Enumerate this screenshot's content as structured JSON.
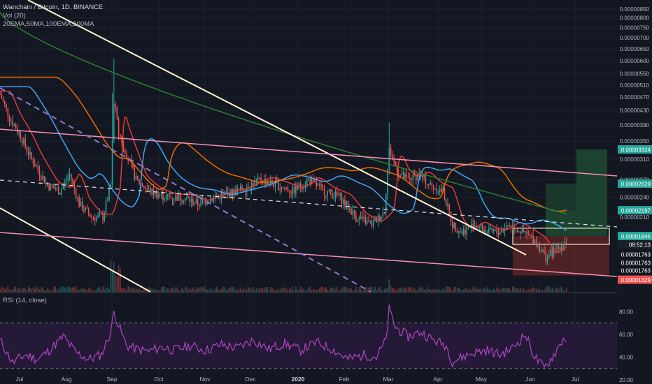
{
  "header": {
    "symbol": "Wanchain / Bitcoin, 1D, BINANCE",
    "volume": "Vol (20)",
    "emas": "20EMA,50MA,100EMA,200MA",
    "rsi": "RSI (14, close)"
  },
  "colors": {
    "background": "#131722",
    "grid": "#1e222d",
    "candle_up": "#26a69a",
    "candle_down": "#ef5350",
    "ema20": "#e53935",
    "ma50": "#42a5f5",
    "ema100": "#ef6c00",
    "ma200": "#2e7d32",
    "white_lines": "#fff5d0",
    "pink_lines": "#f48fb1",
    "dashed_purple": "#9575cd",
    "rsi_line": "#ab47bc",
    "rsi_band": "#2a1a3e"
  },
  "chart_data": [
    {
      "type": "candlestick",
      "ylim": [
        1.29e-06,
        8.9e-06
      ],
      "y_scale": "log",
      "y_ticks": [
        "0.00000850",
        "0.00000800",
        "0.00000750",
        "0.00000700",
        "0.00000650",
        "0.00000600",
        "0.00000550",
        "0.00000510",
        "0.00000470",
        "0.00000430",
        "0.00000390",
        "0.00000350",
        "0.00000310",
        "0.00000270",
        "0.00000240",
        "0.00000210"
      ],
      "x_ticks": [
        "Jul",
        "Aug",
        "Sep",
        "Oct",
        "Nov",
        "Dec",
        "2020",
        "Feb",
        "Mar",
        "Apr",
        "May",
        "Jun",
        "Jul"
      ],
      "price_tags": [
        {
          "label": "0.00003324",
          "value": 3.31e-06,
          "color": "#26a69a"
        },
        {
          "label": "0.00002629",
          "value": 2.63e-06,
          "color": "#26a69a"
        },
        {
          "label": "0.00002197",
          "value": 2.2e-06,
          "color": "#26a69a"
        },
        {
          "label": "0.00001845",
          "value": 1.85e-06,
          "color": "#26a69a"
        },
        {
          "label": "08:52:13",
          "value": 1.75e-06,
          "color": "#1a1e29"
        },
        {
          "label": "0.00001763",
          "value": 1.64e-06,
          "color": "#131722"
        },
        {
          "label": "0.00001763",
          "value": 1.55e-06,
          "color": "#131722"
        },
        {
          "label": "0.00001763",
          "value": 1.47e-06,
          "color": "#131722"
        },
        {
          "label": "0.00001329",
          "value": 1.38e-06,
          "color": "#ef5350"
        }
      ],
      "closes": [
        {
          "d": 0,
          "v": 4.8e-06
        },
        {
          "d": 6,
          "v": 4.1e-06
        },
        {
          "d": 12,
          "v": 3.7e-06
        },
        {
          "d": 20,
          "v": 3.1e-06
        },
        {
          "d": 30,
          "v": 2.6e-06
        },
        {
          "d": 38,
          "v": 2.5e-06
        },
        {
          "d": 44,
          "v": 2.8e-06
        },
        {
          "d": 50,
          "v": 2.3e-06
        },
        {
          "d": 58,
          "v": 2.1e-06
        },
        {
          "d": 65,
          "v": 2.1e-06
        },
        {
          "d": 70,
          "v": 2.6e-06
        },
        {
          "d": 72,
          "v": 4.6e-06
        },
        {
          "d": 75,
          "v": 3.7e-06
        },
        {
          "d": 80,
          "v": 3.2e-06
        },
        {
          "d": 86,
          "v": 2.7e-06
        },
        {
          "d": 95,
          "v": 2.5e-06
        },
        {
          "d": 105,
          "v": 2.4e-06
        },
        {
          "d": 115,
          "v": 2.4e-06
        },
        {
          "d": 125,
          "v": 2.3e-06
        },
        {
          "d": 135,
          "v": 2.4e-06
        },
        {
          "d": 150,
          "v": 2.5e-06
        },
        {
          "d": 165,
          "v": 2.7e-06
        },
        {
          "d": 175,
          "v": 2.6e-06
        },
        {
          "d": 185,
          "v": 2.5e-06
        },
        {
          "d": 195,
          "v": 2.7e-06
        },
        {
          "d": 205,
          "v": 2.5e-06
        },
        {
          "d": 215,
          "v": 2.4e-06
        },
        {
          "d": 225,
          "v": 2.1e-06
        },
        {
          "d": 235,
          "v": 2e-06
        },
        {
          "d": 240,
          "v": 2.1e-06
        },
        {
          "d": 243,
          "v": 2.2e-06
        },
        {
          "d": 246,
          "v": 3.3e-06
        },
        {
          "d": 252,
          "v": 2.8e-06
        },
        {
          "d": 258,
          "v": 2.7e-06
        },
        {
          "d": 265,
          "v": 2.8e-06
        },
        {
          "d": 272,
          "v": 2.6e-06
        },
        {
          "d": 280,
          "v": 2.5e-06
        },
        {
          "d": 286,
          "v": 2e-06
        },
        {
          "d": 292,
          "v": 1.9e-06
        },
        {
          "d": 300,
          "v": 2e-06
        },
        {
          "d": 308,
          "v": 1.9e-06
        },
        {
          "d": 315,
          "v": 1.9e-06
        },
        {
          "d": 322,
          "v": 2e-06
        },
        {
          "d": 330,
          "v": 1.9e-06
        },
        {
          "d": 338,
          "v": 1.8e-06
        },
        {
          "d": 345,
          "v": 1.6e-06
        },
        {
          "d": 352,
          "v": 1.7e-06
        },
        {
          "d": 358,
          "v": 1.8e-06
        }
      ],
      "rsi_ylim": [
        20,
        90
      ],
      "rsi_ticks": [
        "80.00",
        "60.00",
        "40.00",
        "20.00"
      ],
      "rsi_band": [
        30,
        70
      ],
      "rsi": [
        {
          "d": 0,
          "v": 55
        },
        {
          "d": 8,
          "v": 35
        },
        {
          "d": 16,
          "v": 42
        },
        {
          "d": 24,
          "v": 38
        },
        {
          "d": 32,
          "v": 47
        },
        {
          "d": 40,
          "v": 58
        },
        {
          "d": 48,
          "v": 44
        },
        {
          "d": 56,
          "v": 38
        },
        {
          "d": 64,
          "v": 42
        },
        {
          "d": 70,
          "v": 62
        },
        {
          "d": 72,
          "v": 80
        },
        {
          "d": 76,
          "v": 64
        },
        {
          "d": 80,
          "v": 50
        },
        {
          "d": 86,
          "v": 47
        },
        {
          "d": 94,
          "v": 45
        },
        {
          "d": 102,
          "v": 49
        },
        {
          "d": 110,
          "v": 46
        },
        {
          "d": 120,
          "v": 50
        },
        {
          "d": 130,
          "v": 46
        },
        {
          "d": 140,
          "v": 51
        },
        {
          "d": 150,
          "v": 48
        },
        {
          "d": 160,
          "v": 55
        },
        {
          "d": 170,
          "v": 47
        },
        {
          "d": 180,
          "v": 52
        },
        {
          "d": 190,
          "v": 46
        },
        {
          "d": 200,
          "v": 53
        },
        {
          "d": 210,
          "v": 47
        },
        {
          "d": 220,
          "v": 38
        },
        {
          "d": 230,
          "v": 42
        },
        {
          "d": 238,
          "v": 40
        },
        {
          "d": 244,
          "v": 55
        },
        {
          "d": 246,
          "v": 82
        },
        {
          "d": 250,
          "v": 66
        },
        {
          "d": 258,
          "v": 58
        },
        {
          "d": 266,
          "v": 62
        },
        {
          "d": 274,
          "v": 55
        },
        {
          "d": 282,
          "v": 50
        },
        {
          "d": 286,
          "v": 36
        },
        {
          "d": 292,
          "v": 40
        },
        {
          "d": 300,
          "v": 44
        },
        {
          "d": 308,
          "v": 46
        },
        {
          "d": 316,
          "v": 42
        },
        {
          "d": 324,
          "v": 48
        },
        {
          "d": 332,
          "v": 60
        },
        {
          "d": 338,
          "v": 40
        },
        {
          "d": 344,
          "v": 30
        },
        {
          "d": 350,
          "v": 42
        },
        {
          "d": 356,
          "v": 56
        }
      ]
    }
  ]
}
